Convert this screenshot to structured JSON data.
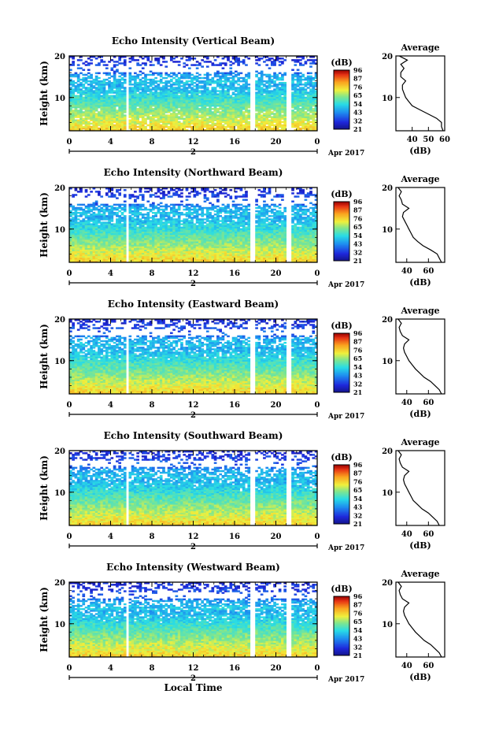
{
  "x_ticks": [
    "0",
    "4",
    "8",
    "12",
    "16",
    "20",
    "0"
  ],
  "date_day": "2",
  "date_month_year": "Apr 2017",
  "ylabel": "Height (km)",
  "xlabel": "Local Time",
  "colorbar_unit": "(dB)",
  "colorbar_ticks": [
    "96",
    "87",
    "76",
    "65",
    "54",
    "43",
    "32",
    "21"
  ],
  "avg_title": "Average",
  "avg_xlabel": "(dB)",
  "chart_data": [
    {
      "type": "heatmap",
      "title": "Echo Intensity (Vertical Beam)",
      "xlabel": "",
      "ylabel": "Height (km)",
      "x_range": [
        0,
        24
      ],
      "y_range": [
        2,
        20
      ],
      "y_ticks": [
        10,
        20
      ],
      "color_range": [
        21,
        96
      ],
      "gaps_hours": [
        [
          5.5,
          5.8
        ],
        [
          17.4,
          18.0
        ],
        [
          21.1,
          21.4
        ]
      ],
      "profile": {
        "xlim": [
          30,
          60
        ],
        "x_ticks": [
          40,
          50,
          60
        ],
        "heights": [
          2,
          3,
          4,
          5,
          6,
          7,
          8,
          9,
          10,
          11,
          12,
          13,
          14,
          15,
          16,
          17,
          18,
          19,
          20
        ],
        "values": [
          59,
          58,
          58,
          55,
          50,
          45,
          40,
          38,
          36,
          35,
          34,
          34,
          36,
          33,
          33,
          35,
          33,
          37,
          32
        ]
      }
    },
    {
      "type": "heatmap",
      "title": "Echo Intensity (Northward Beam)",
      "xlabel": "",
      "ylabel": "Height (km)",
      "x_range": [
        0,
        24
      ],
      "y_range": [
        2,
        20
      ],
      "y_ticks": [
        10,
        20
      ],
      "color_range": [
        21,
        96
      ],
      "gaps_hours": [
        [
          5.5,
          5.8
        ],
        [
          17.4,
          18.0
        ],
        [
          21.1,
          21.4
        ]
      ],
      "profile": {
        "xlim": [
          30,
          75
        ],
        "x_ticks": [
          40,
          60
        ],
        "heights": [
          2,
          3,
          4,
          5,
          6,
          7,
          8,
          9,
          10,
          11,
          12,
          13,
          14,
          15,
          16,
          17,
          18,
          19,
          20
        ],
        "values": [
          72,
          70,
          68,
          62,
          55,
          50,
          46,
          44,
          42,
          40,
          38,
          36,
          37,
          42,
          36,
          35,
          33,
          35,
          32
        ]
      }
    },
    {
      "type": "heatmap",
      "title": "Echo Intensity (Eastward Beam)",
      "xlabel": "",
      "ylabel": "Height (km)",
      "x_range": [
        0,
        24
      ],
      "y_range": [
        2,
        20
      ],
      "y_ticks": [
        10,
        20
      ],
      "color_range": [
        21,
        96
      ],
      "gaps_hours": [
        [
          5.5,
          5.8
        ],
        [
          17.4,
          18.0
        ],
        [
          21.1,
          21.4
        ]
      ],
      "profile": {
        "xlim": [
          30,
          75
        ],
        "x_ticks": [
          40,
          60
        ],
        "heights": [
          2,
          3,
          4,
          5,
          6,
          7,
          8,
          9,
          10,
          11,
          12,
          13,
          14,
          15,
          16,
          17,
          18,
          19,
          20
        ],
        "values": [
          72,
          70,
          66,
          62,
          56,
          52,
          48,
          45,
          42,
          40,
          38,
          37,
          38,
          42,
          36,
          34,
          33,
          35,
          32
        ]
      }
    },
    {
      "type": "heatmap",
      "title": "Echo Intensity (Southward Beam)",
      "xlabel": "",
      "ylabel": "Height (km)",
      "x_range": [
        0,
        24
      ],
      "y_range": [
        2,
        20
      ],
      "y_ticks": [
        10,
        20
      ],
      "color_range": [
        21,
        96
      ],
      "gaps_hours": [
        [
          5.5,
          5.8
        ],
        [
          17.4,
          18.0
        ],
        [
          21.1,
          21.4
        ]
      ],
      "profile": {
        "xlim": [
          30,
          75
        ],
        "x_ticks": [
          40,
          60
        ],
        "heights": [
          2,
          3,
          4,
          5,
          6,
          7,
          8,
          9,
          10,
          11,
          12,
          13,
          14,
          15,
          16,
          17,
          18,
          19,
          20
        ],
        "values": [
          70,
          68,
          64,
          60,
          54,
          50,
          46,
          44,
          42,
          40,
          38,
          37,
          38,
          42,
          36,
          34,
          33,
          35,
          32
        ]
      }
    },
    {
      "type": "heatmap",
      "title": "Echo Intensity (Westward Beam)",
      "xlabel": "Local Time",
      "ylabel": "Height (km)",
      "x_range": [
        0,
        24
      ],
      "y_range": [
        2,
        20
      ],
      "y_ticks": [
        10,
        20
      ],
      "color_range": [
        21,
        96
      ],
      "gaps_hours": [
        [
          5.5,
          5.8
        ],
        [
          17.4,
          18.0
        ],
        [
          21.1,
          21.4
        ]
      ],
      "profile": {
        "xlim": [
          30,
          75
        ],
        "x_ticks": [
          40,
          60
        ],
        "heights": [
          2,
          3,
          4,
          5,
          6,
          7,
          8,
          9,
          10,
          11,
          12,
          13,
          14,
          15,
          16,
          17,
          18,
          19,
          20
        ],
        "values": [
          72,
          70,
          66,
          62,
          56,
          52,
          48,
          45,
          42,
          40,
          38,
          37,
          38,
          42,
          36,
          34,
          33,
          35,
          32
        ]
      }
    }
  ]
}
